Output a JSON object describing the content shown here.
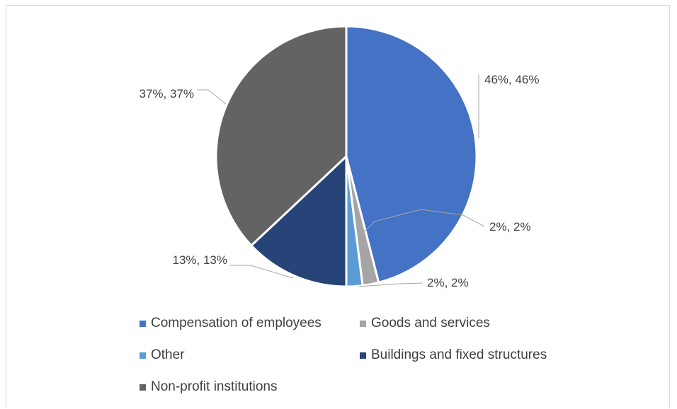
{
  "chart_data": {
    "type": "pie",
    "title": "",
    "series": [
      {
        "values": [
          46,
          2,
          2,
          13,
          37
        ]
      }
    ],
    "categories": [
      "Compensation of employees",
      "Goods and services",
      "Other",
      "Buildings and fixed structures",
      "Non-profit institutions"
    ],
    "colors": [
      "#4472C4",
      "#A5A5A5",
      "#5B9BD5",
      "#264478",
      "#636363"
    ],
    "data_labels": [
      "46%, 46%",
      "2%, 2%",
      "2%, 2%",
      "13%, 13%",
      "37%, 37%"
    ],
    "legend_position": "bottom"
  }
}
